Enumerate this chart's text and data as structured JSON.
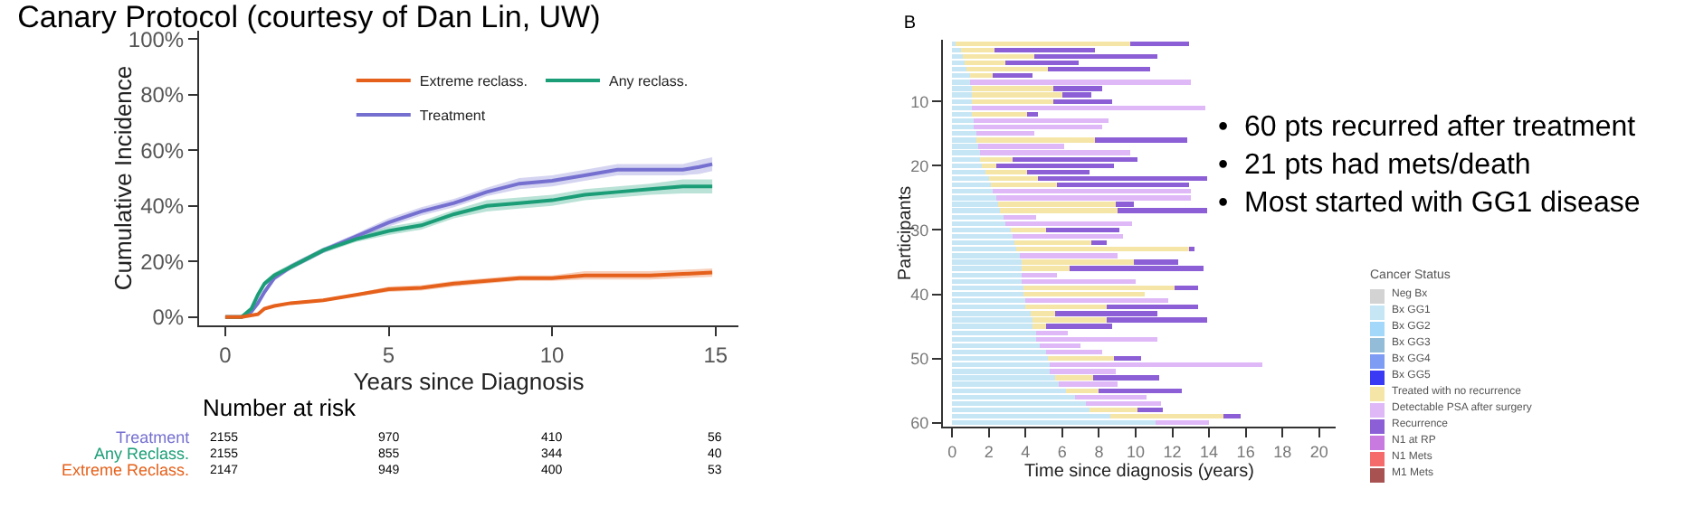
{
  "chart_data": [
    {
      "type": "line",
      "title": "Canary Protocol (courtesy of Dan Lin, UW)",
      "xlabel": "Years since Diagnosis",
      "ylabel": "Cumulative Incidence",
      "xlim": [
        -0.8,
        15.7
      ],
      "xticks": [
        0,
        5,
        10,
        15
      ],
      "ylim": [
        -3,
        103
      ],
      "yticks": [
        {
          "value": 0,
          "label": "0%"
        },
        {
          "value": 20,
          "label": "20%"
        },
        {
          "value": 40,
          "label": "40%"
        },
        {
          "value": 60,
          "label": "60%"
        },
        {
          "value": 80,
          "label": "80%"
        },
        {
          "value": 100,
          "label": "100%"
        }
      ],
      "legend": "top right",
      "grid": false,
      "series": [
        {
          "name": "Treatment",
          "color": "#7570d0",
          "x": [
            0,
            0.5,
            0.8,
            1,
            1.2,
            1.5,
            2,
            3,
            4,
            5,
            6,
            7,
            8,
            9,
            10,
            11,
            12,
            13,
            14,
            14.5,
            14.9
          ],
          "values": [
            0,
            0,
            2,
            5,
            9,
            14,
            18,
            24,
            29,
            34,
            38,
            41,
            45,
            48,
            49,
            51,
            53,
            53,
            53,
            54,
            55
          ],
          "lower": [
            0,
            0,
            1.5,
            4,
            8,
            13,
            17,
            23,
            28,
            32.5,
            36.5,
            39.5,
            43.5,
            46,
            47,
            49,
            51,
            51,
            51,
            51.5,
            52.5
          ],
          "upper": [
            0,
            0,
            2.5,
            6,
            10,
            15,
            19,
            25,
            30,
            35.5,
            39.5,
            42.5,
            46.5,
            50,
            51,
            53,
            55,
            55,
            55,
            56.5,
            57.5
          ]
        },
        {
          "name": "Any reclass.",
          "color": "#1b9e77",
          "x": [
            0,
            0.5,
            0.8,
            1,
            1.2,
            1.5,
            2,
            3,
            4,
            5,
            6,
            7,
            8,
            9,
            10,
            11,
            12,
            13,
            14,
            14.9
          ],
          "values": [
            0,
            0,
            3,
            8,
            12,
            15,
            18,
            24,
            28,
            31,
            33,
            37,
            40,
            41,
            42,
            44,
            45,
            46,
            47,
            47
          ],
          "lower": [
            0,
            0,
            2.5,
            7,
            11,
            14,
            17,
            23,
            27,
            29.5,
            31.5,
            35.5,
            38,
            39,
            40,
            42,
            43,
            44,
            44.5,
            44.5
          ],
          "upper": [
            0,
            0,
            3.5,
            9,
            13,
            16,
            19,
            25,
            29,
            32.5,
            34.5,
            38.5,
            42,
            43,
            44,
            46,
            47,
            48,
            49.5,
            49.5
          ]
        },
        {
          "name": "Extreme reclass.",
          "color": "#e5601a",
          "x": [
            0,
            0.5,
            1,
            1.2,
            1.5,
            2,
            3,
            4,
            5,
            6,
            7,
            8,
            9,
            10,
            11,
            12,
            13,
            14,
            14.9
          ],
          "values": [
            0,
            0,
            1,
            3,
            4,
            5,
            6,
            8,
            10,
            10.5,
            12,
            13,
            14,
            14,
            15,
            15,
            15,
            15.5,
            16
          ],
          "lower": [
            0,
            0,
            0.5,
            2.5,
            3.5,
            4.5,
            5.5,
            7.5,
            9,
            9.5,
            11,
            12,
            13,
            13,
            13.5,
            13.5,
            13.5,
            14,
            14.5
          ],
          "upper": [
            0,
            0,
            1.5,
            3.5,
            4.5,
            5.5,
            6.5,
            8.5,
            11,
            11.5,
            13,
            14,
            15,
            15,
            16.5,
            16.5,
            16.5,
            17,
            17.5
          ]
        }
      ],
      "annotations": [
        "Number at risk",
        "Treatment",
        "2155",
        "970",
        "410",
        "56",
        "Any Reclass.",
        "2155",
        "855",
        "344",
        "40",
        "Extreme Reclass.",
        "2147",
        "949",
        "400",
        "53"
      ]
    },
    {
      "type": "bar",
      "orientation": "horizontal",
      "stacked": true,
      "title": "B",
      "xlabel": "Time since diagnosis (years)",
      "ylabel": "Participants",
      "legend_title": "Cancer Status",
      "legend": "right",
      "xlim": [
        -0.5,
        20.9
      ],
      "xticks": [
        0,
        2,
        4,
        6,
        8,
        10,
        12,
        14,
        16,
        18,
        20
      ],
      "grid": false,
      "categories": [
        null,
        null,
        null,
        null,
        null,
        null,
        null,
        null,
        null,
        "10",
        null,
        null,
        null,
        null,
        null,
        null,
        null,
        null,
        null,
        "20",
        null,
        null,
        null,
        null,
        null,
        null,
        null,
        null,
        null,
        "30",
        null,
        null,
        null,
        null,
        null,
        null,
        null,
        null,
        null,
        "40",
        null,
        null,
        null,
        null,
        null,
        null,
        null,
        null,
        null,
        "50",
        null,
        null,
        null,
        null,
        null,
        null,
        null,
        null,
        null,
        "60"
      ],
      "series": [
        {
          "name": "Neg Bx",
          "color": "#d3d3d3",
          "values": [
            null,
            null,
            null,
            null,
            null,
            null,
            null,
            null,
            null,
            null,
            null,
            null,
            null,
            null,
            null,
            null,
            null,
            null,
            null,
            null,
            null,
            null,
            null,
            null,
            null,
            null,
            null,
            null,
            null,
            null,
            null,
            null,
            null,
            null,
            null,
            null,
            null,
            null,
            null,
            null,
            null,
            null,
            null,
            null,
            null,
            null,
            null,
            null,
            null,
            null,
            null,
            null,
            null,
            null,
            null,
            null,
            null,
            null,
            null,
            null
          ]
        },
        {
          "name": "Bx GG1",
          "color": "#c6e6f5",
          "values": [
            0.2,
            0.5,
            0.6,
            0.7,
            0.8,
            1.0,
            1.0,
            1.1,
            1.1,
            1.1,
            1.1,
            1.1,
            1.2,
            1.2,
            1.3,
            1.3,
            1.4,
            1.5,
            1.5,
            1.6,
            1.8,
            2.0,
            2.1,
            2.2,
            2.4,
            2.5,
            2.6,
            2.8,
            2.9,
            3.2,
            3.3,
            3.4,
            3.5,
            3.7,
            3.8,
            3.8,
            3.8,
            3.8,
            3.9,
            3.9,
            4.0,
            4.0,
            4.3,
            4.4,
            4.4,
            4.6,
            4.6,
            4.8,
            5.1,
            5.2,
            5.3,
            5.3,
            5.6,
            5.8,
            6.2,
            6.7,
            7.3,
            7.5,
            8.6,
            11.1
          ]
        },
        {
          "name": "Bx GG2",
          "color": "#a3d8fb",
          "values": [
            null,
            null,
            null,
            null,
            null,
            null,
            null,
            null,
            null,
            null,
            null,
            null,
            null,
            null,
            null,
            null,
            null,
            null,
            null,
            null,
            null,
            null,
            null,
            null,
            null,
            null,
            null,
            null,
            null,
            null,
            null,
            null,
            null,
            null,
            null,
            null,
            null,
            null,
            null,
            null,
            null,
            null,
            null,
            null,
            null,
            null,
            null,
            null,
            null,
            null,
            null,
            null,
            null,
            null,
            null,
            null,
            null,
            null,
            null,
            null
          ]
        },
        {
          "name": "Bx GG3",
          "color": "#93bcd9",
          "values": [
            null,
            null,
            null,
            null,
            null,
            null,
            null,
            null,
            null,
            null,
            null,
            null,
            null,
            null,
            null,
            null,
            null,
            null,
            null,
            null,
            null,
            null,
            null,
            null,
            null,
            null,
            null,
            null,
            null,
            null,
            null,
            null,
            null,
            null,
            null,
            null,
            null,
            null,
            null,
            null,
            null,
            null,
            null,
            null,
            null,
            null,
            null,
            null,
            null,
            null,
            null,
            null,
            null,
            null,
            null,
            null,
            null,
            null,
            null,
            null
          ]
        },
        {
          "name": "Bx GG4",
          "color": "#7f9cf5",
          "values": [
            null,
            null,
            null,
            null,
            null,
            null,
            null,
            null,
            null,
            null,
            null,
            null,
            null,
            null,
            null,
            null,
            null,
            null,
            null,
            null,
            null,
            null,
            null,
            null,
            null,
            null,
            null,
            null,
            null,
            null,
            null,
            null,
            null,
            null,
            null,
            null,
            null,
            null,
            null,
            null,
            null,
            null,
            null,
            null,
            null,
            null,
            null,
            null,
            null,
            null,
            null,
            null,
            null,
            null,
            null,
            null,
            null,
            null,
            null,
            null
          ]
        },
        {
          "name": "Bx GG5",
          "color": "#3a3af5",
          "values": [
            null,
            null,
            null,
            null,
            null,
            null,
            null,
            null,
            null,
            null,
            null,
            null,
            null,
            null,
            null,
            null,
            null,
            null,
            null,
            null,
            null,
            null,
            null,
            null,
            null,
            null,
            null,
            null,
            null,
            null,
            null,
            null,
            null,
            null,
            null,
            null,
            null,
            null,
            null,
            null,
            null,
            null,
            null,
            null,
            null,
            null,
            null,
            null,
            null,
            null,
            null,
            null,
            null,
            null,
            null,
            null,
            null,
            null,
            null,
            null
          ]
        },
        {
          "name": "Treated with no recurrence",
          "color": "#f5e6a8",
          "values": [
            9.5,
            1.8,
            3.9,
            2.2,
            4.4,
            1.2,
            null,
            4.4,
            4.9,
            4.4,
            null,
            3.0,
            null,
            null,
            null,
            6.5,
            null,
            null,
            1.8,
            0.8,
            2.3,
            2.7,
            3.6,
            null,
            null,
            6.4,
            6.4,
            null,
            null,
            1.9,
            null,
            4.2,
            9.4,
            null,
            6.1,
            2.6,
            null,
            null,
            8.2,
            6.6,
            null,
            4.4,
            1.3,
            4.0,
            0.7,
            null,
            null,
            null,
            null,
            3.6,
            null,
            null,
            2.1,
            null,
            1.8,
            null,
            null,
            2.6,
            6.2,
            null
          ]
        },
        {
          "name": "Detectable PSA after surgery",
          "color": "#dfb8f7",
          "values": [
            null,
            null,
            null,
            null,
            null,
            null,
            12.0,
            null,
            null,
            null,
            12.7,
            null,
            7.3,
            7.0,
            3.2,
            null,
            4.7,
            8.2,
            null,
            null,
            null,
            null,
            null,
            10.8,
            10.6,
            null,
            null,
            1.8,
            6.9,
            null,
            6.0,
            null,
            null,
            5.3,
            null,
            null,
            1.9,
            6.2,
            null,
            null,
            7.8,
            null,
            null,
            null,
            null,
            1.7,
            6.6,
            2.2,
            3.1,
            null,
            11.6,
            3.6,
            null,
            3.2,
            null,
            3.9,
            4.1,
            null,
            null,
            2.9
          ]
        },
        {
          "name": "Recurrence",
          "color": "#8c5fd6",
          "values": [
            3.2,
            5.5,
            6.7,
            4.0,
            5.6,
            2.2,
            null,
            2.7,
            1.6,
            3.2,
            null,
            0.6,
            null,
            null,
            null,
            5.0,
            null,
            null,
            6.8,
            6.4,
            3.4,
            9.2,
            7.2,
            null,
            null,
            1.0,
            4.9,
            null,
            null,
            4.0,
            null,
            0.8,
            0.3,
            null,
            2.4,
            7.3,
            null,
            null,
            1.3,
            null,
            null,
            5.0,
            5.6,
            5.5,
            3.6,
            null,
            null,
            null,
            null,
            1.5,
            null,
            null,
            3.6,
            null,
            4.5,
            null,
            null,
            1.4,
            0.9,
            null
          ]
        },
        {
          "name": "N1 at RP",
          "color": "#c87ae0",
          "values": [
            null,
            null,
            null,
            null,
            null,
            null,
            null,
            null,
            null,
            null,
            null,
            null,
            null,
            null,
            null,
            null,
            null,
            null,
            null,
            null,
            null,
            null,
            null,
            null,
            null,
            null,
            null,
            null,
            null,
            null,
            null,
            null,
            null,
            null,
            null,
            null,
            null,
            null,
            null,
            null,
            null,
            null,
            null,
            null,
            null,
            null,
            null,
            null,
            null,
            null,
            null,
            null,
            null,
            null,
            null,
            null,
            null,
            null,
            null,
            null
          ]
        },
        {
          "name": "N1 Mets",
          "color": "#f56b6b",
          "values": [
            null,
            null,
            null,
            null,
            null,
            null,
            null,
            null,
            null,
            null,
            null,
            null,
            null,
            null,
            null,
            null,
            null,
            null,
            null,
            null,
            null,
            null,
            null,
            null,
            null,
            null,
            null,
            null,
            null,
            null,
            null,
            null,
            null,
            null,
            null,
            null,
            null,
            null,
            null,
            null,
            null,
            null,
            null,
            null,
            null,
            null,
            null,
            null,
            null,
            null,
            null,
            null,
            null,
            null,
            null,
            null,
            null,
            null,
            null,
            null
          ]
        },
        {
          "name": "M1 Mets",
          "color": "#a85252",
          "values": [
            null,
            null,
            null,
            null,
            null,
            null,
            null,
            null,
            null,
            null,
            null,
            null,
            null,
            null,
            null,
            null,
            null,
            null,
            null,
            null,
            null,
            null,
            null,
            null,
            null,
            null,
            null,
            null,
            null,
            null,
            null,
            null,
            null,
            null,
            null,
            null,
            null,
            null,
            null,
            null,
            null,
            null,
            null,
            null,
            null,
            null,
            null,
            null,
            null,
            null,
            null,
            null,
            null,
            null,
            null,
            null,
            null,
            null,
            null,
            null
          ]
        }
      ]
    },
    {
      "type": "other",
      "annotations": [
        "•  60 pts recurred after treatment",
        "•  21 pts had mets/death",
        "•  Most started with GG1 disease"
      ]
    }
  ]
}
